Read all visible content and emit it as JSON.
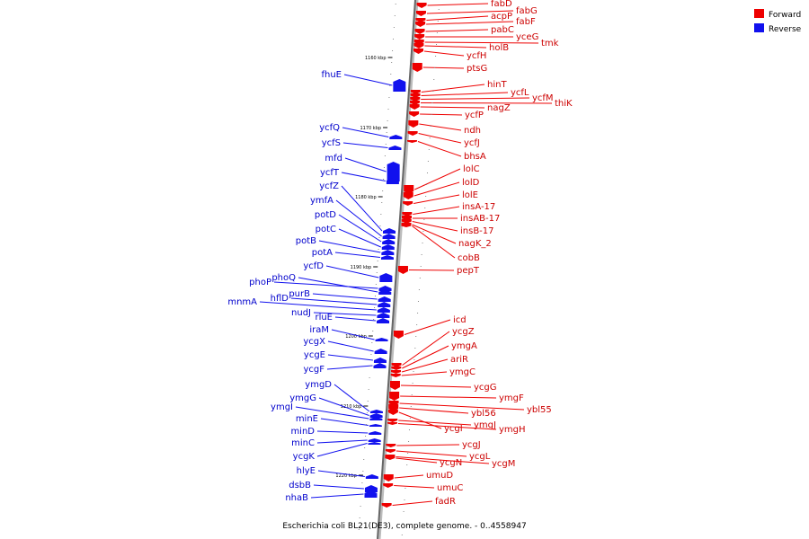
{
  "caption": "Escherichia coli BL21(DE3), complete genome. - 0..4558947",
  "legend": [
    {
      "label": "Forward",
      "color": "#ee0000"
    },
    {
      "label": "Reverse",
      "color": "#1111ee"
    }
  ],
  "ticks": [
    "1160 kbp",
    "1170 kbp",
    "1180 kbp",
    "1190 kbp",
    "1200 kbp",
    "1210 kbp",
    "1220 kbp"
  ],
  "forward_genes": [
    "fabD",
    "fabG",
    "acpP",
    "fabF",
    "pabC",
    "yceG",
    "tmk",
    "holB",
    "ycfH",
    "ptsG",
    "hinT",
    "ycfL",
    "ycfM",
    "thiK",
    "nagZ",
    "ycfP",
    "ndh",
    "ycfJ",
    "bhsA",
    "lolC",
    "lolD",
    "lolE",
    "insA-17",
    "insAB-17",
    "insB-17",
    "nagK_2",
    "cobB",
    "pepT",
    "icd",
    "ycgZ",
    "ymgA",
    "ariR",
    "ymgC",
    "ycgG",
    "ymgF",
    "ybl56",
    "ybl55",
    "ycgI",
    "ymgJ",
    "ymgH",
    "ycgJ",
    "ycgL",
    "ycgN",
    "ycgM",
    "umuD",
    "umuC",
    "fadR"
  ],
  "reverse_genes": [
    "fhuE",
    "ycfQ",
    "ycfS",
    "mfd",
    "ycfT",
    "ycfZ",
    "ymfA",
    "potD",
    "potC",
    "potB",
    "potA",
    "ycfD",
    "phoP",
    "phoQ",
    "purB",
    "hflD",
    "mnmA",
    "nudJ",
    "rluE",
    "iraM",
    "ycgX",
    "ycgE",
    "ycgF",
    "ymgD",
    "ymgG",
    "ymgI",
    "minE",
    "minD",
    "minC",
    "ycgK",
    "hlyE",
    "dsbB",
    "nhaB"
  ]
}
